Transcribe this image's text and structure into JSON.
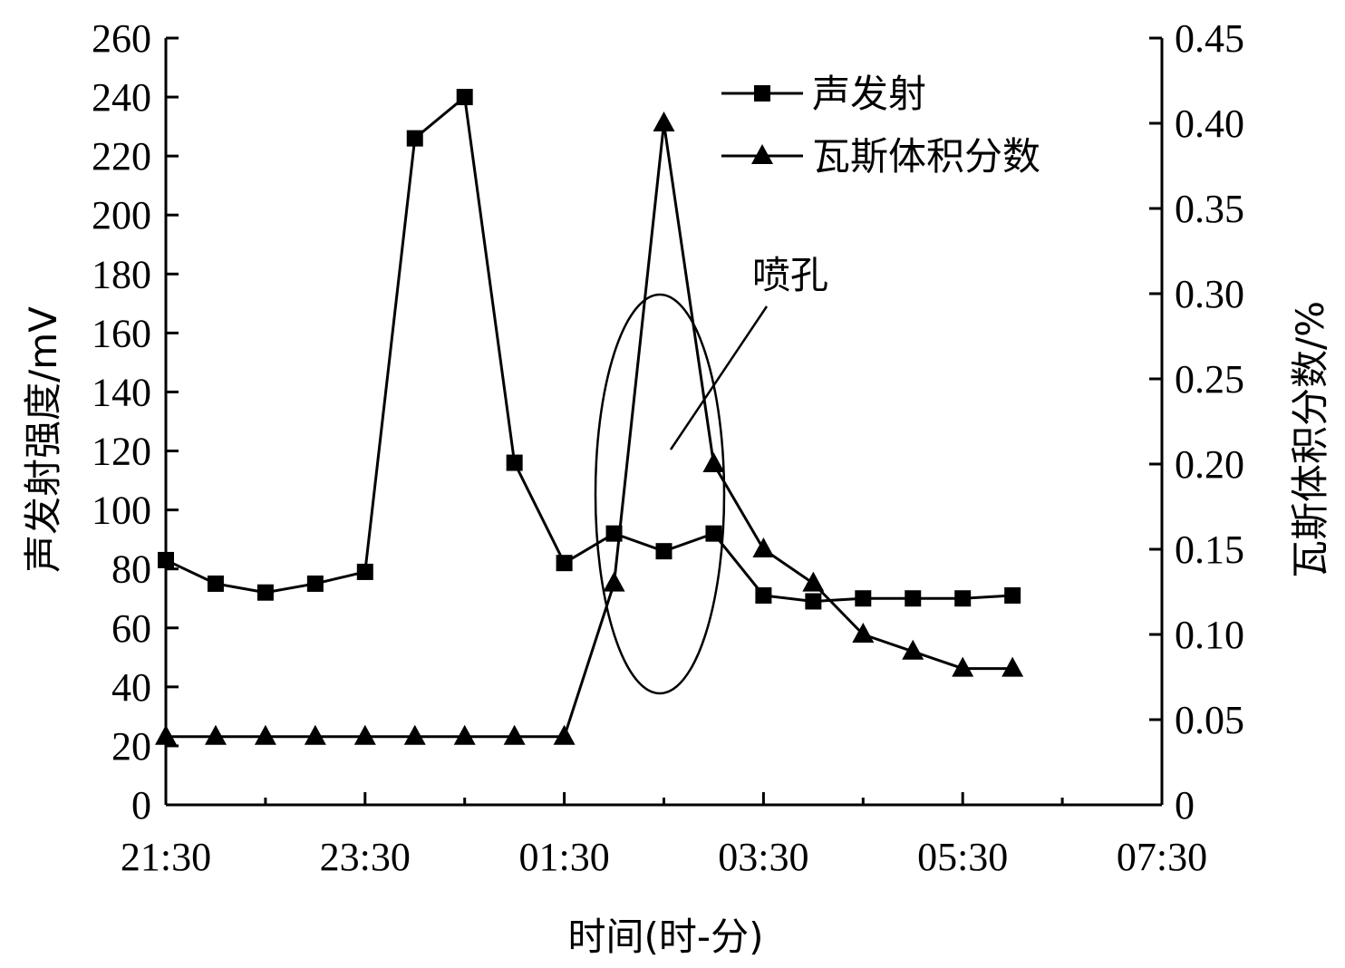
{
  "chart_data": {
    "type": "line",
    "xlabel": "时间(时-分)",
    "ylabel_left": "声发射强度/mV",
    "ylabel_right": "瓦斯体积分数/%",
    "x_ticks": [
      "21:30",
      "23:30",
      "01:30",
      "03:30",
      "05:30",
      "07:30"
    ],
    "x_tick_hours": [
      0,
      2,
      4,
      6,
      8,
      10
    ],
    "xlim_hours": [
      0,
      10
    ],
    "ylim_left": [
      0,
      260
    ],
    "yticks_left": [
      "0",
      "20",
      "40",
      "60",
      "80",
      "100",
      "120",
      "140",
      "160",
      "180",
      "200",
      "220",
      "240",
      "260"
    ],
    "ylim_right": [
      0,
      0.45
    ],
    "yticks_right": [
      "0",
      "0.05",
      "0.10",
      "0.15",
      "0.20",
      "0.25",
      "0.30",
      "0.35",
      "0.40",
      "0.45"
    ],
    "x_hours": [
      0,
      0.5,
      1,
      1.5,
      2,
      2.5,
      3,
      3.5,
      4,
      4.5,
      5,
      5.5,
      6,
      6.5,
      7,
      7.5,
      8,
      8.5
    ],
    "series": [
      {
        "name": "声发射",
        "axis": "left",
        "marker": "square",
        "values": [
          83,
          75,
          72,
          75,
          79,
          226,
          240,
          116,
          82,
          92,
          86,
          92,
          71,
          69,
          70,
          70,
          70,
          71
        ]
      },
      {
        "name": "瓦斯体积分数",
        "axis": "right",
        "marker": "triangle",
        "values": [
          0.04,
          0.04,
          0.04,
          0.04,
          0.04,
          0.04,
          0.04,
          0.04,
          0.04,
          0.13,
          0.4,
          0.2,
          0.15,
          0.13,
          0.1,
          0.09,
          0.08,
          0.08
        ]
      }
    ],
    "annotation": {
      "text": "喷孔",
      "x_hours": 5.0,
      "y_left": 173
    },
    "grid": false,
    "legend_position": "top-right"
  }
}
